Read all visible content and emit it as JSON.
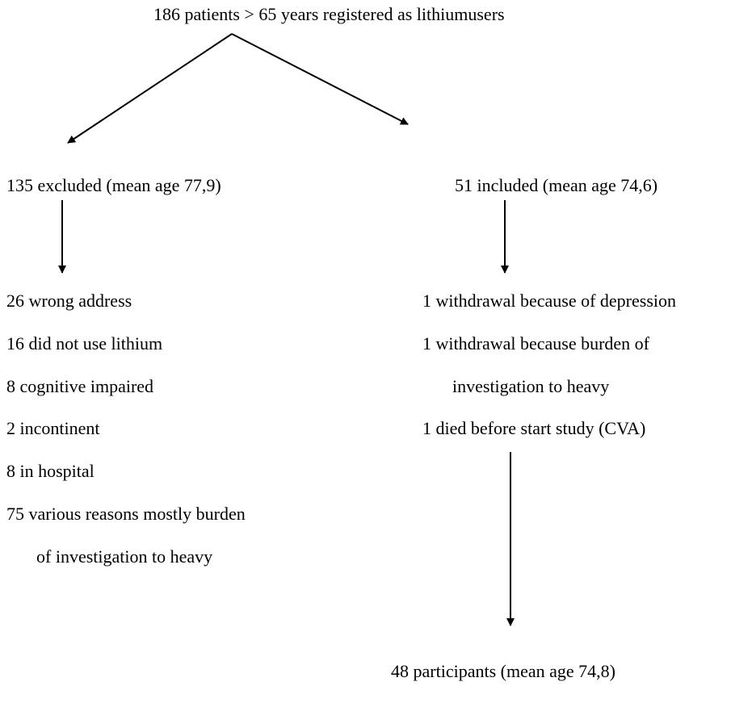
{
  "top": "186 patients > 65 years registered as lithiumusers",
  "left": {
    "header": "135 excluded (mean age 77,9)",
    "items": [
      "26 wrong address",
      "16 did not use lithium",
      "8 cognitive impaired",
      "2 incontinent",
      "8 in hospital",
      "75 various reasons mostly burden",
      "of investigation to heavy"
    ]
  },
  "right": {
    "header": "51 included (mean age 74,6)",
    "items": [
      "1 withdrawal because of depression",
      "1 withdrawal because burden of",
      "investigation to heavy",
      "1 died before start study (CVA)"
    ]
  },
  "result": "48 participants (mean age 74,8)"
}
